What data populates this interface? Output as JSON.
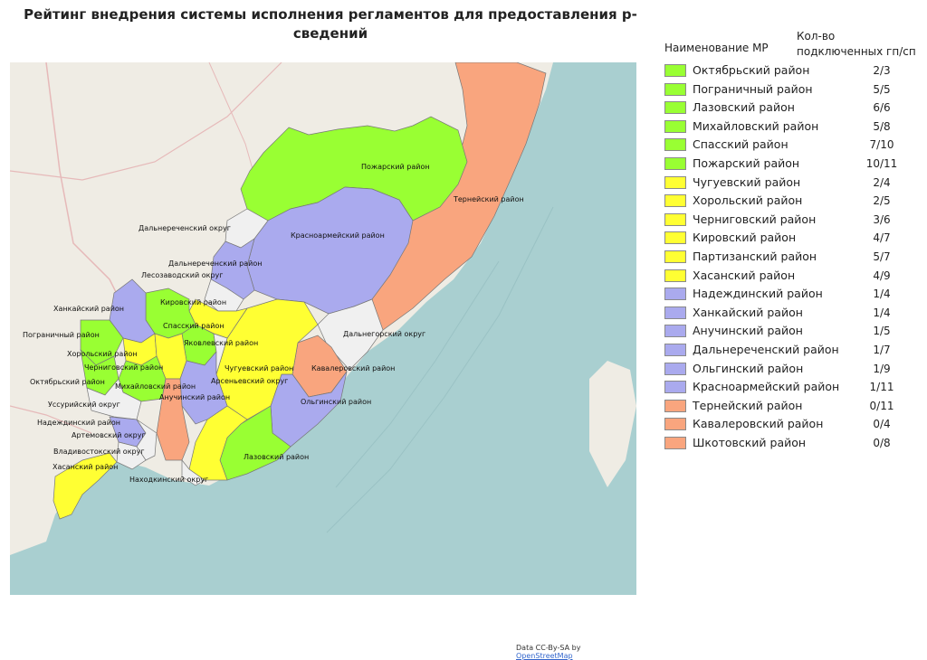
{
  "title": "Рейтинг внедрения системы исполнения регламентов для предоставления р-сведений",
  "legend": {
    "header_name": "Наименование МР",
    "header_count_line1": "Кол-во",
    "header_count_line2": "подключенных гп/сп",
    "items": [
      {
        "name": "Октябрьский район",
        "count": "2/3",
        "color": "#99ff33"
      },
      {
        "name": "Пограничный район",
        "count": "5/5",
        "color": "#99ff33"
      },
      {
        "name": "Лазовский район",
        "count": "6/6",
        "color": "#99ff33"
      },
      {
        "name": "Михайловский район",
        "count": "5/8",
        "color": "#99ff33"
      },
      {
        "name": "Спасский район",
        "count": "7/10",
        "color": "#99ff33"
      },
      {
        "name": "Пожарский район",
        "count": "10/11",
        "color": "#99ff33"
      },
      {
        "name": "Чугуевский район",
        "count": "2/4",
        "color": "#ffff33"
      },
      {
        "name": "Хорольский район",
        "count": "2/5",
        "color": "#ffff33"
      },
      {
        "name": "Черниговский район",
        "count": "3/6",
        "color": "#ffff33"
      },
      {
        "name": "Кировский район",
        "count": "4/7",
        "color": "#ffff33"
      },
      {
        "name": "Партизанский район",
        "count": "5/7",
        "color": "#ffff33"
      },
      {
        "name": "Хасанский район",
        "count": "4/9",
        "color": "#ffff33"
      },
      {
        "name": "Надеждинский район",
        "count": "1/4",
        "color": "#aaaaee"
      },
      {
        "name": "Ханкайский район",
        "count": "1/4",
        "color": "#aaaaee"
      },
      {
        "name": "Анучинский район",
        "count": "1/5",
        "color": "#aaaaee"
      },
      {
        "name": "Дальнереченский район",
        "count": "1/7",
        "color": "#aaaaee"
      },
      {
        "name": "Ольгинский район",
        "count": "1/9",
        "color": "#aaaaee"
      },
      {
        "name": "Красноармейский район",
        "count": "1/11",
        "color": "#aaaaee"
      },
      {
        "name": "Тернейский район",
        "count": "0/11",
        "color": "#f9a57e"
      },
      {
        "name": "Кавалеровский район",
        "count": "0/4",
        "color": "#f9a57e"
      },
      {
        "name": "Шкотовский район",
        "count": "0/8",
        "color": "#f9a57e"
      }
    ]
  },
  "map": {
    "labels": {
      "pozharsky": "Пожарский район",
      "terneysky": "Тернейский район",
      "dalnerechensky_okrug": "Дальнереченский округ",
      "krasnoarmeysky": "Красноармейский район",
      "dalnerechensky_rayon": "Дальнереченский район",
      "lesozavodsky": "Лесозаводский округ",
      "khankaysky": "Ханкайский район",
      "kirovsky": "Кировский район",
      "spassky": "Спасский район",
      "dalnegorsky": "Дальнегорский округ",
      "pogranichny": "Пограничный район",
      "yakovlevsky": "Яковлевский район",
      "khorolsky": "Хорольский район",
      "chuguevsky": "Чугуевский район",
      "kavalerovsky": "Кавалеровский район",
      "chernigovsky": "Черниговский район",
      "oktyabrsky": "Октябрьский район",
      "arsenyevsky": "Арсеньевский округ",
      "mikhaylovsky": "Михайловский район",
      "anuchinsky": "Анучинский район",
      "olginsky": "Ольгинский район",
      "ussuriysky": "Уссурийский округ",
      "nadezhdinsky": "Надеждинский район",
      "artemovsky": "Артемовский округ",
      "vladivostoksky": "Владивостокский округ",
      "lazovsky": "Лазовский район",
      "khasansky": "Хасанский район",
      "nakhodkinsky": "Находкинский округ"
    },
    "colors": {
      "sea": "#a9cfd0",
      "land": "#efece4",
      "green": "#99ff33",
      "yellow": "#ffff33",
      "blue": "#aaaaee",
      "orange": "#f9a57e",
      "urban": "#f0f0f0"
    },
    "credit_text": "Data CC-By-SA by",
    "credit_link": "OpenStreetMap"
  }
}
